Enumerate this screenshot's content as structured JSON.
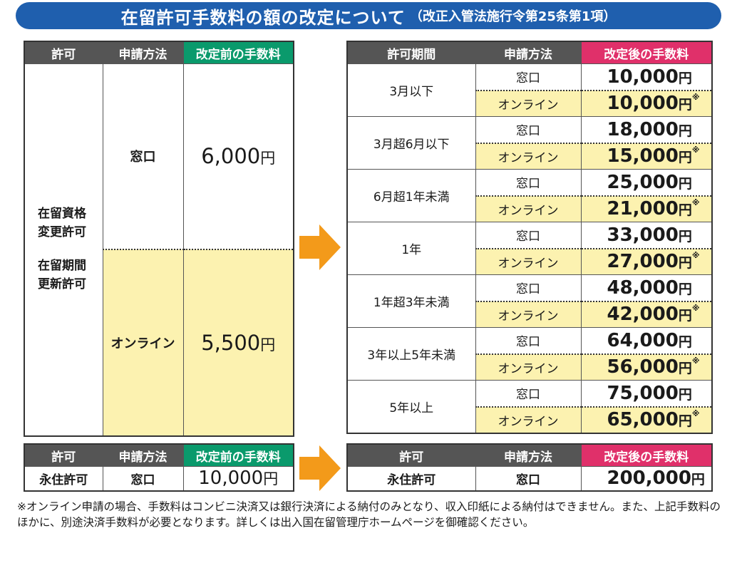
{
  "title": {
    "main": "在留許可手数料の額の改定について",
    "sub": "（改正入管法施行令第25条第1項）"
  },
  "old_table": {
    "headers": [
      "許可",
      "申請方法",
      "改定前の手数料"
    ],
    "permit_lines": [
      "在留資格",
      "変更許可",
      "在留期間",
      "更新許可"
    ],
    "rows": [
      {
        "method": "窓口",
        "amount": "6,000",
        "yen": "円"
      },
      {
        "method": "オンライン",
        "amount": "5,500",
        "yen": "円"
      }
    ]
  },
  "new_table": {
    "headers": [
      "許可期間",
      "申請方法",
      "改定後の手数料"
    ],
    "yen": "円",
    "mark": "※",
    "groups": [
      {
        "period": "3月以下",
        "counter": "窓口",
        "counter_amount": "10,000",
        "online": "オンライン",
        "online_amount": "10,000"
      },
      {
        "period": "3月超6月以下",
        "counter": "窓口",
        "counter_amount": "18,000",
        "online": "オンライン",
        "online_amount": "15,000"
      },
      {
        "period": "6月超1年未満",
        "counter": "窓口",
        "counter_amount": "25,000",
        "online": "オンライン",
        "online_amount": "21,000"
      },
      {
        "period": "1年",
        "counter": "窓口",
        "counter_amount": "33,000",
        "online": "オンライン",
        "online_amount": "27,000"
      },
      {
        "period": "1年超3年未満",
        "counter": "窓口",
        "counter_amount": "48,000",
        "online": "オンライン",
        "online_amount": "42,000"
      },
      {
        "period": "3年以上5年未満",
        "counter": "窓口",
        "counter_amount": "64,000",
        "online": "オンライン",
        "online_amount": "56,000"
      },
      {
        "period": "5年以上",
        "counter": "窓口",
        "counter_amount": "75,000",
        "online": "オンライン",
        "online_amount": "65,000"
      }
    ]
  },
  "perm_old": {
    "headers": [
      "許可",
      "申請方法",
      "改定前の手数料"
    ],
    "permit": "永住許可",
    "method": "窓口",
    "amount": "10,000",
    "yen": "円"
  },
  "perm_new": {
    "headers": [
      "許可",
      "申請方法",
      "改定後の手数料"
    ],
    "permit": "永住許可",
    "method": "窓口",
    "amount": "200,000",
    "yen": "円"
  },
  "note": "※オンライン申請の場合、手数料はコンビニ決済又は銀行決済による納付のみとなり、収入印紙による納付はできません。また、上記手数料のほかに、別途決済手数料が必要となります。詳しくは出入国在留管理庁ホームページを御確認ください。",
  "colors": {
    "banner": "#1f5fae",
    "green": "#0a9a6c",
    "red": "#e0306a",
    "yellow": "#fcf2b0",
    "arrow": "#f39a1a",
    "header_gray": "#555555"
  }
}
